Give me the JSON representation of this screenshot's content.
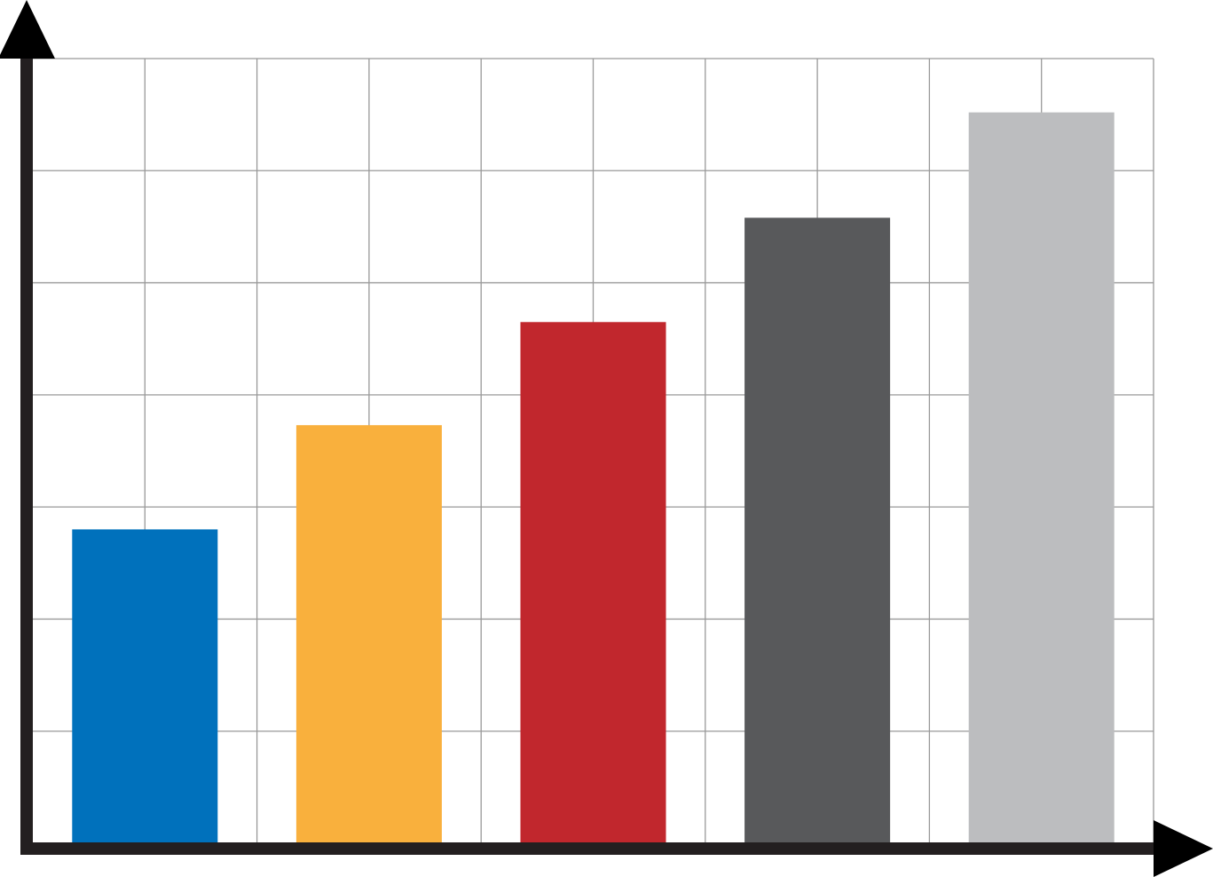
{
  "chart_data": {
    "type": "bar",
    "title": "",
    "xlabel": "",
    "ylabel": "",
    "categories": [
      "",
      "",
      "",
      "",
      ""
    ],
    "values": [
      2.8,
      3.73,
      4.65,
      5.58,
      6.52
    ],
    "ylim": [
      0,
      7
    ],
    "grid": true,
    "legend": "none",
    "colors": [
      "#0071bc",
      "#f9b03d",
      "#c1272d",
      "#58595b",
      "#bcbdbf"
    ]
  },
  "style": {
    "grid_color": "#999999",
    "axis_color": "#231f20",
    "background": "#ffffff"
  }
}
